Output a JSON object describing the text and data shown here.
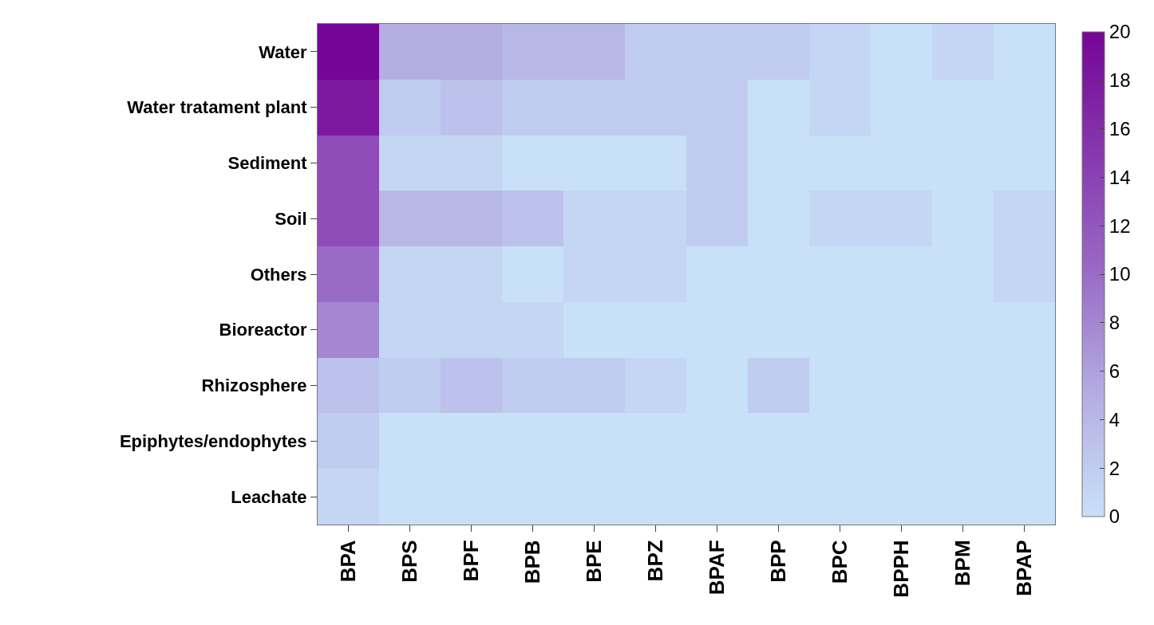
{
  "chart_data": {
    "type": "heatmap",
    "categories": [
      "BPA",
      "BPS",
      "BPF",
      "BPB",
      "BPE",
      "BPZ",
      "BPAF",
      "BPP",
      "BPC",
      "BPPH",
      "BPM",
      "BPAP"
    ],
    "y_categories": [
      "Water",
      "Water tratament plant",
      "Sediment",
      "Soil",
      "Others",
      "Bioreactor",
      "Rhizosphere",
      "Epiphytes/endophytes",
      "Leachate"
    ],
    "cells": [
      [
        20,
        5,
        5,
        4,
        4,
        2,
        2,
        2,
        1,
        0,
        1,
        0
      ],
      [
        18,
        2,
        3,
        2,
        2,
        2,
        2,
        0,
        1,
        0,
        0,
        0
      ],
      [
        13,
        1,
        1,
        0,
        0,
        0,
        2,
        0,
        0,
        0,
        0,
        0
      ],
      [
        13,
        4,
        4,
        3,
        1,
        1,
        2,
        0,
        1,
        1,
        0,
        1
      ],
      [
        10,
        1,
        1,
        0,
        1,
        1,
        0,
        0,
        0,
        0,
        0,
        1
      ],
      [
        8,
        1,
        1,
        1,
        0,
        0,
        0,
        0,
        0,
        0,
        0,
        0
      ],
      [
        3,
        2,
        3,
        2,
        2,
        1,
        0,
        2,
        0,
        0,
        0,
        0
      ],
      [
        2,
        0,
        0,
        0,
        0,
        0,
        0,
        0,
        0,
        0,
        0,
        0
      ],
      [
        1,
        0,
        0,
        0,
        0,
        0,
        0,
        0,
        0,
        0,
        0,
        0
      ]
    ],
    "clim": [
      0,
      20
    ],
    "cticks": [
      0,
      2,
      4,
      6,
      8,
      10,
      12,
      14,
      16,
      18,
      20
    ]
  }
}
